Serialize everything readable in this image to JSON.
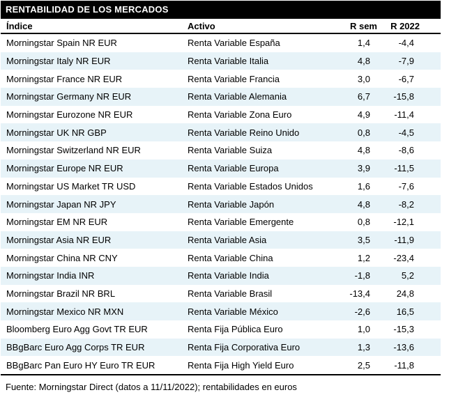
{
  "title": "RENTABILIDAD DE LOS MERCADOS",
  "columns": {
    "indice": "Índice",
    "activo": "Activo",
    "rsem": "R sem",
    "r2022": "R 2022"
  },
  "rows": [
    {
      "indice": "Morningstar Spain NR EUR",
      "activo": "Renta Variable España",
      "rsem": "1,4",
      "r2022": "-4,4"
    },
    {
      "indice": "Morningstar Italy NR EUR",
      "activo": "Renta Variable Italia",
      "rsem": "4,8",
      "r2022": "-7,9"
    },
    {
      "indice": "Morningstar France NR EUR",
      "activo": "Renta Variable Francia",
      "rsem": "3,0",
      "r2022": "-6,7"
    },
    {
      "indice": "Morningstar Germany NR EUR",
      "activo": "Renta Variable Alemania",
      "rsem": "6,7",
      "r2022": "-15,8"
    },
    {
      "indice": "Morningstar Eurozone NR EUR",
      "activo": "Renta Variable Zona Euro",
      "rsem": "4,9",
      "r2022": "-11,4"
    },
    {
      "indice": "Morningstar UK NR GBP",
      "activo": "Renta Variable Reino Unido",
      "rsem": "0,8",
      "r2022": "-4,5"
    },
    {
      "indice": "Morningstar Switzerland NR EUR",
      "activo": "Renta Variable Suiza",
      "rsem": "4,8",
      "r2022": "-8,6"
    },
    {
      "indice": "Morningstar Europe NR EUR",
      "activo": "Renta Variable Europa",
      "rsem": "3,9",
      "r2022": "-11,5"
    },
    {
      "indice": "Morningstar US Market TR USD",
      "activo": "Renta Variable Estados Unidos",
      "rsem": "1,6",
      "r2022": "-7,6"
    },
    {
      "indice": "Morningstar Japan NR JPY",
      "activo": "Renta Variable Japón",
      "rsem": "4,8",
      "r2022": "-8,2"
    },
    {
      "indice": "Morningstar EM NR EUR",
      "activo": "Renta Variable Emergente",
      "rsem": "0,8",
      "r2022": "-12,1"
    },
    {
      "indice": "Morningstar Asia NR EUR",
      "activo": "Renta Variable Asia",
      "rsem": "3,5",
      "r2022": "-11,9"
    },
    {
      "indice": "Morningstar China NR CNY",
      "activo": "Renta Variable China",
      "rsem": "1,2",
      "r2022": "-23,4"
    },
    {
      "indice": "Morningstar India INR",
      "activo": "Renta Variable India",
      "rsem": "-1,8",
      "r2022": "5,2"
    },
    {
      "indice": "Morningstar Brazil NR BRL",
      "activo": "Renta Variable Brasil",
      "rsem": "-13,4",
      "r2022": "24,8"
    },
    {
      "indice": "Morningstar Mexico NR MXN",
      "activo": "Renta Variable México",
      "rsem": "-2,6",
      "r2022": "16,5"
    },
    {
      "indice": "Bloomberg Euro Agg Govt TR EUR",
      "activo": "Renta Fija Pública Euro",
      "rsem": "1,0",
      "r2022": "-15,3"
    },
    {
      "indice": "BBgBarc Euro Agg Corps TR EUR",
      "activo": "Renta Fija Corporativa Euro",
      "rsem": "1,3",
      "r2022": "-13,6"
    },
    {
      "indice": "BBgBarc Pan Euro HY Euro TR EUR",
      "activo": "Renta Fija High Yield Euro",
      "rsem": "2,5",
      "r2022": "-11,8"
    }
  ],
  "footer": "Fuente: Morningstar Direct (datos a 11/11/2022); rentabilidades en euros",
  "colors": {
    "title_bg": "#000000",
    "title_text": "#ffffff",
    "row_alt_bg": "#e7f3f8",
    "border": "#000000",
    "text": "#000000"
  }
}
